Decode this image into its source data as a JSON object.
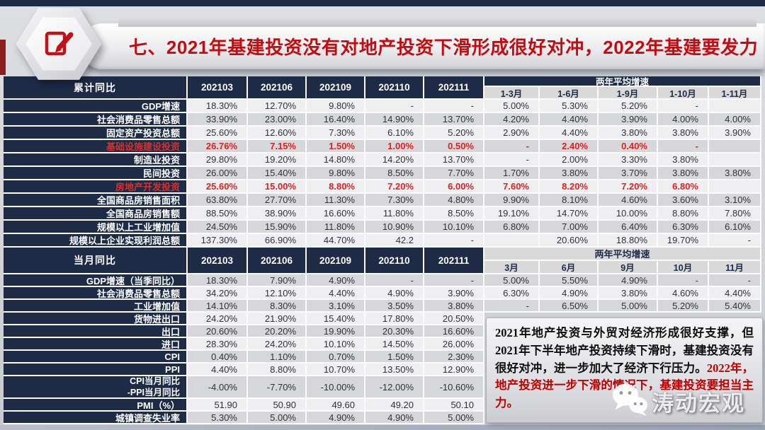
{
  "slide": {
    "title": "七、2021年基建投资没有对地产投资下滑形成很好对冲，2022年基建要发力",
    "accent_red": "#c00d12",
    "navy": "#1d2b47"
  },
  "table": {
    "section1": {
      "row_header": "累计同比",
      "month_cols": [
        "202103",
        "202106",
        "202109",
        "202110",
        "202111"
      ],
      "avg_header": "两年平均增速",
      "avg_cols": [
        "1-3月",
        "1-6月",
        "1-9月",
        "1-10月",
        "1-11月"
      ],
      "rows": [
        {
          "label": "GDP增速",
          "red": false,
          "left": [
            "18.30%",
            "12.70%",
            "9.80%",
            "-",
            "-"
          ],
          "right": [
            "5.00%",
            "5.30%",
            "5.20%",
            "-",
            ""
          ]
        },
        {
          "label": "社会消费品零售总额",
          "red": false,
          "left": [
            "33.90%",
            "23.00%",
            "16.40%",
            "14.90%",
            "13.70%"
          ],
          "right": [
            "4.20%",
            "4.40%",
            "3.90%",
            "4.00%",
            "4.00%"
          ]
        },
        {
          "label": "固定资产投资总额",
          "red": false,
          "left": [
            "25.60%",
            "12.60%",
            "7.30%",
            "6.10%",
            "5.20%"
          ],
          "right": [
            "2.90%",
            "4.40%",
            "3.80%",
            "3.80%",
            "3.90%"
          ]
        },
        {
          "label": "基础设施建设投资",
          "red": true,
          "left": [
            "26.76%",
            "7.15%",
            "1.50%",
            "1.00%",
            "0.50%"
          ],
          "right": [
            "-",
            "2.40%",
            "0.40%",
            "-",
            ""
          ]
        },
        {
          "label": "制造业投资",
          "red": false,
          "left": [
            "29.80%",
            "19.20%",
            "14.80%",
            "14.20%",
            "13.70%"
          ],
          "right": [
            "-",
            "2.00%",
            "3.30%",
            "3.80%",
            ""
          ]
        },
        {
          "label": "民间投资",
          "red": false,
          "left": [
            "26.00%",
            "15.40%",
            "9.80%",
            "8.50%",
            "7.70%"
          ],
          "right": [
            "1.70%",
            "3.80%",
            "3.70%",
            "3.80%",
            "3.80%"
          ]
        },
        {
          "label": "房地产开发投资",
          "red": true,
          "left": [
            "25.60%",
            "15.00%",
            "8.80%",
            "7.20%",
            "6.00%"
          ],
          "right": [
            "7.60%",
            "8.20%",
            "7.20%",
            "6.80%",
            ""
          ]
        },
        {
          "label": "全国商品房销售面积",
          "red": false,
          "left": [
            "63.80%",
            "27.70%",
            "11.30%",
            "7.30%",
            "4.80%"
          ],
          "right": [
            "9.90%",
            "8.10%",
            "4.60%",
            "3.60%",
            "3.10%"
          ]
        },
        {
          "label": "全国商品房销售额",
          "red": false,
          "left": [
            "88.50%",
            "38.90%",
            "16.60%",
            "11.80%",
            "8.50%"
          ],
          "right": [
            "19.10%",
            "14.70%",
            "10.00%",
            "8.80%",
            "7.80%"
          ]
        },
        {
          "label": "规模以上工业增加值",
          "red": false,
          "left": [
            "24.50%",
            "15.90%",
            "11.80%",
            "10.90%",
            "10.10%"
          ],
          "right": [
            "6.80%",
            "7.00%",
            "6.40%",
            "6.30%",
            "6.10%"
          ]
        },
        {
          "label": "规模以上企业实现利润总额",
          "red": false,
          "left": [
            "137.30%",
            "66.90%",
            "44.70%",
            "42.2",
            "-"
          ],
          "right": [
            "",
            "20.60%",
            "18.80%",
            "19.70%",
            "-"
          ]
        }
      ]
    },
    "section2": {
      "row_header": "当月同比",
      "month_cols": [
        "202103",
        "202106",
        "202109",
        "202110",
        "202111"
      ],
      "avg_header": "两年平均增速",
      "avg_cols": [
        "3月",
        "6月",
        "9月",
        "10月",
        "11月"
      ],
      "rows": [
        {
          "label": "GDP增速（当季同比）",
          "red": false,
          "left": [
            "18.30%",
            "7.90%",
            "4.90%",
            "-",
            "-"
          ],
          "right": [
            "5.00%",
            "5.50%",
            "4.90%",
            "-",
            "-"
          ]
        },
        {
          "label": "社会消费品零售总额",
          "red": false,
          "left": [
            "34.20%",
            "12.10%",
            "4.40%",
            "4.90%",
            "3.90%"
          ],
          "right": [
            "6.30%",
            "4.90%",
            "3.80%",
            "4.60%",
            "4.40%"
          ]
        },
        {
          "label": "工业增加值",
          "red": false,
          "left": [
            "14.10%",
            "8.30%",
            "3.10%",
            "3.50%",
            "3.80%"
          ],
          "right": [
            "-",
            "6.50%",
            "5.00%",
            "5.20%",
            "5.40%"
          ]
        },
        {
          "label": "货物进出口",
          "red": false,
          "left": [
            "24.20%",
            "21.90%",
            "15.40%",
            "17.80%",
            "20.50%"
          ],
          "right": null
        },
        {
          "label": "出口",
          "red": false,
          "left": [
            "20.60%",
            "20.20%",
            "19.90%",
            "20.30%",
            "16.60%"
          ],
          "right": null
        },
        {
          "label": "进口",
          "red": false,
          "left": [
            "28.30%",
            "24.20%",
            "10.10%",
            "14.50%",
            "26.00%"
          ],
          "right": null
        },
        {
          "label": "CPI",
          "red": false,
          "left": [
            "0.40%",
            "1.10%",
            "0.70%",
            "1.50%",
            "2.30%"
          ],
          "right": null
        },
        {
          "label": "PPI",
          "red": false,
          "left": [
            "4.40%",
            "8.80%",
            "10.70%",
            "13.50%",
            "12.90%"
          ],
          "right": null
        },
        {
          "label": "CPI当月同比",
          "label2": "-PPI当月同比",
          "tall": true,
          "red": false,
          "left": [
            "-4.00%",
            "-7.70%",
            "-10.00%",
            "-12.00%",
            "-10.60%"
          ],
          "right": null
        },
        {
          "label": "PMI（%）",
          "red": false,
          "left": [
            "51.90",
            "50.90",
            "49.60",
            "49.20",
            "50.10"
          ],
          "right": null
        },
        {
          "label": "城镇调查失业率",
          "red": false,
          "left": [
            "5.30%",
            "5.00%",
            "4.90%",
            "4.90%",
            "5.00%"
          ],
          "right": null
        }
      ]
    }
  },
  "note": {
    "black_text": "2021年地产投资与外贸对经济形成很好支撑，但2021年下半年地产投资持续下滑时，基建投资没有很好对冲，进一步加大了经济下行压力。",
    "red_text": "2022年，地产投资进一步下滑的情况下，基建投资要担当主力。"
  },
  "watermark": {
    "text": "涛动宏观",
    "icon": "wechat-icon"
  }
}
